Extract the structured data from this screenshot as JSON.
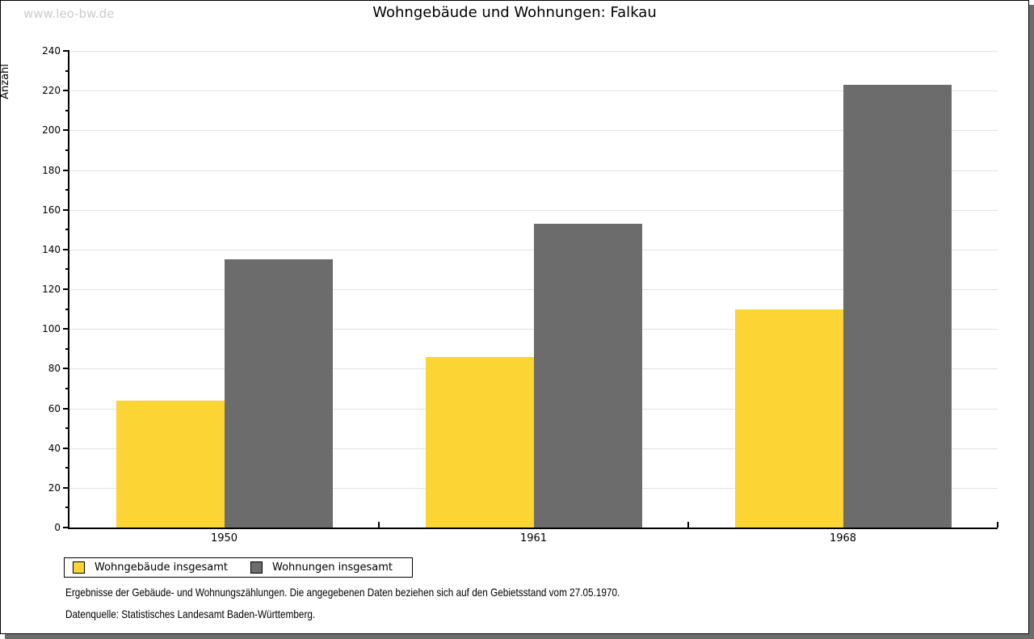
{
  "watermark": "www.leo-bw.de",
  "title": "Wohngebäude und Wohnungen: Falkau",
  "chart_data": {
    "type": "bar",
    "title": "Wohngebäude und Wohnungen: Falkau",
    "categories": [
      "1950",
      "1961",
      "1968"
    ],
    "series": [
      {
        "name": "Wohngebäude insgesamt",
        "color": "#FCD434",
        "values": [
          64,
          86,
          110
        ]
      },
      {
        "name": "Wohnungen insgesamt",
        "color": "#6C6C6C",
        "values": [
          135,
          153,
          223
        ]
      }
    ],
    "xlabel": "",
    "ylabel": "Anzahl",
    "ylim": [
      0,
      240
    ],
    "ytick_step": 20,
    "yminor_step": 10,
    "grid": true,
    "legend_position": "bottom-left"
  },
  "footnotes": {
    "line1": "Ergebnisse der Gebäude- und Wohnungszählungen. Die angegebenen Daten beziehen sich auf den Gebietsstand vom 27.05.1970.",
    "line2": "Datenquelle: Statistisches Landesamt Baden-Württemberg."
  },
  "colors": {
    "bar_yellow": "#FCD434",
    "bar_gray": "#6C6C6C",
    "gridline": "#E2E2E2",
    "watermark": "#CCCCCC",
    "frame_shadow": "#6C6C6C",
    "axis": "#000000"
  }
}
